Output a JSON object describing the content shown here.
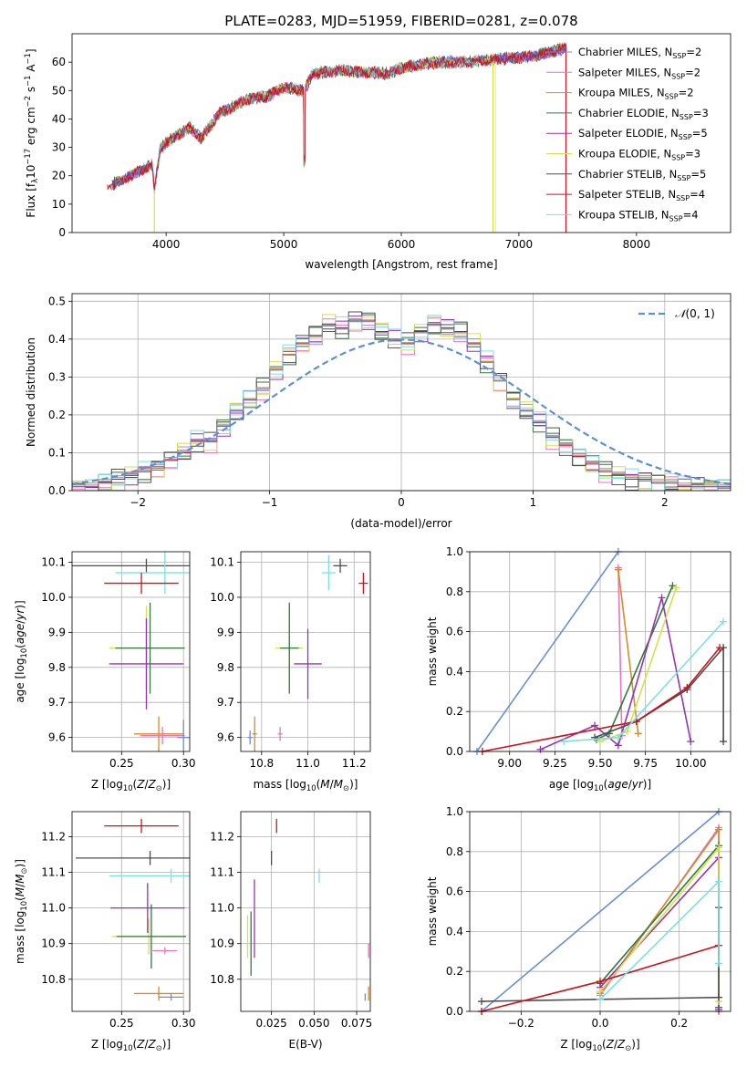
{
  "colors": {
    "Chabrier MILES": "#6a8fd6",
    "Salpeter MILES": "#e377c2",
    "Kroupa MILES": "#d48b2a",
    "Chabrier ELODIE": "#2f7a3a",
    "Salpeter ELODIE": "#9633b5",
    "Kroupa ELODIE": "#d7e04a",
    "Chabrier STELIB": "#4d4d4d",
    "Salpeter STELIB": "#c8141e",
    "Kroupa STELIB": "#7ee0e0",
    "normal": "#5b8fd8"
  },
  "chart_data": [
    {
      "id": "spectrum",
      "type": "line",
      "title": "PLATE=0283, MJD=51959, FIBERID=0281, z=0.078",
      "xlabel": "wavelength [Angstrom, rest frame]",
      "ylabel": "Flux [f_λ10^-17 erg cm^-2 s^-1 A^-1]",
      "xlim": [
        3200,
        8800
      ],
      "ylim": [
        0,
        70
      ],
      "xticks": [
        "4000",
        "5000",
        "6000",
        "7000",
        "8000"
      ],
      "yticks": [
        "0",
        "10",
        "20",
        "30",
        "40",
        "50",
        "60"
      ],
      "grid": false,
      "legend_position": "top-right",
      "legend": [
        {
          "model": "Chabrier MILES",
          "nssp": "2"
        },
        {
          "model": "Salpeter MILES",
          "nssp": "2"
        },
        {
          "model": "Kroupa MILES",
          "nssp": "2"
        },
        {
          "model": "Chabrier ELODIE",
          "nssp": "3"
        },
        {
          "model": "Salpeter ELODIE",
          "nssp": "5"
        },
        {
          "model": "Kroupa ELODIE",
          "nssp": "3"
        },
        {
          "model": "Chabrier STELIB",
          "nssp": "5"
        },
        {
          "model": "Salpeter STELIB",
          "nssp": "4"
        },
        {
          "model": "Kroupa STELIB",
          "nssp": "4"
        }
      ],
      "continuum": [
        [
          3500,
          16
        ],
        [
          3700,
          20
        ],
        [
          3880,
          24
        ],
        [
          3900,
          15
        ],
        [
          3950,
          30
        ],
        [
          4050,
          33
        ],
        [
          4200,
          37
        ],
        [
          4300,
          33
        ],
        [
          4450,
          42
        ],
        [
          4700,
          47
        ],
        [
          4861,
          48
        ],
        [
          5000,
          51
        ],
        [
          5175,
          50
        ],
        [
          5250,
          56
        ],
        [
          5500,
          57
        ],
        [
          5890,
          56
        ],
        [
          6000,
          58
        ],
        [
          6300,
          60
        ],
        [
          6563,
          60
        ],
        [
          6800,
          61
        ],
        [
          7100,
          62
        ],
        [
          7300,
          64
        ],
        [
          7400,
          65
        ]
      ],
      "series_ranges": [
        {
          "name": "Kroupa ELODIE",
          "x": [
            3900,
            6800
          ]
        },
        {
          "name": "Salpeter STELIB",
          "x": [
            3500,
            7400
          ]
        },
        {
          "name": "Chabrier MILES",
          "x": [
            3540,
            7410
          ]
        }
      ]
    },
    {
      "id": "residuals",
      "type": "histogram",
      "xlabel": "(data-model)/error",
      "ylabel": "Normed distribution",
      "xlim": [
        -2.5,
        2.5
      ],
      "ylim": [
        0,
        0.52
      ],
      "xticks": [
        "−2",
        "−1",
        "0",
        "1",
        "2"
      ],
      "yticks": [
        "0.0",
        "0.1",
        "0.2",
        "0.3",
        "0.4",
        "0.5"
      ],
      "grid": true,
      "legend_position": "top-right",
      "legend": [
        {
          "label": "𝒩(0, 1)"
        }
      ],
      "bin_width": 0.1,
      "bin_range": [
        -2.5,
        2.5
      ],
      "series": [
        {
          "name": "Chabrier MILES",
          "values": [
            0.02,
            0.03,
            0.03,
            0.04,
            0.05,
            0.06,
            0.07,
            0.08,
            0.09,
            0.1,
            0.11,
            0.12,
            0.14,
            0.16,
            0.18,
            0.2,
            0.22,
            0.25,
            0.27,
            0.29,
            0.31,
            0.33,
            0.35,
            0.37,
            0.38,
            0.39,
            0.4,
            0.4,
            0.4,
            0.39,
            0.38,
            0.37,
            0.35,
            0.33,
            0.31,
            0.29,
            0.27,
            0.25,
            0.22,
            0.2,
            0.18,
            0.16,
            0.14,
            0.12,
            0.11,
            0.1,
            0.09,
            0.08,
            0.07,
            0.06
          ]
        },
        {
          "name": "Kroupa MILES",
          "values": [
            0.02,
            0.03,
            0.03,
            0.04,
            0.05,
            0.06,
            0.07,
            0.08,
            0.09,
            0.1,
            0.11,
            0.12,
            0.14,
            0.16,
            0.18,
            0.2,
            0.22,
            0.25,
            0.27,
            0.29,
            0.31,
            0.33,
            0.35,
            0.37,
            0.38,
            0.39,
            0.4,
            0.4,
            0.4,
            0.39,
            0.38,
            0.37,
            0.35,
            0.33,
            0.31,
            0.29,
            0.27,
            0.25,
            0.22,
            0.2,
            0.18,
            0.16,
            0.14,
            0.12,
            0.11,
            0.1,
            0.09,
            0.08,
            0.07,
            0.06
          ]
        },
        {
          "name": "Salpeter STELIB",
          "values": [
            0.01,
            0.01,
            0.02,
            0.03,
            0.04,
            0.05,
            0.06,
            0.08,
            0.1,
            0.13,
            0.13,
            0.17,
            0.21,
            0.24,
            0.27,
            0.32,
            0.36,
            0.39,
            0.41,
            0.44,
            0.43,
            0.45,
            0.45,
            0.42,
            0.4,
            0.39,
            0.42,
            0.44,
            0.43,
            0.42,
            0.39,
            0.34,
            0.29,
            0.24,
            0.21,
            0.18,
            0.14,
            0.12,
            0.09,
            0.07,
            0.05,
            0.04,
            0.03,
            0.03,
            0.02,
            0.02,
            0.01,
            0.01,
            0.01,
            0.01
          ]
        }
      ],
      "normal_curve": {
        "label": "𝒩(0, 1)",
        "mean": 0,
        "sigma": 1
      }
    },
    {
      "id": "age-vs-z",
      "type": "errorbar",
      "xlabel": "Z [log10(Z/Z⊙)]",
      "ylabel": "age [log10(age/yr)]",
      "xlim": [
        0.21,
        0.305
      ],
      "ylim": [
        9.56,
        10.13
      ],
      "xticks": [
        "0.25",
        "0.30"
      ],
      "yticks": [
        "9.6",
        "9.7",
        "9.8",
        "9.9",
        "10.0",
        "10.1"
      ],
      "grid": true,
      "points": [
        {
          "series": "Chabrier STELIB",
          "x": 0.27,
          "xerr": 0.06,
          "y": 10.09,
          "yerr": 0.02
        },
        {
          "series": "Kroupa STELIB",
          "x": 0.285,
          "xerr": 0.04,
          "y": 10.07,
          "yerr": 0.06
        },
        {
          "series": "Salpeter STELIB",
          "x": 0.266,
          "xerr": 0.03,
          "y": 10.04,
          "yerr": 0.03
        },
        {
          "series": "Kroupa ELODIE",
          "x": 0.27,
          "xerr": 0.03,
          "y": 9.855,
          "yerr": 0.12
        },
        {
          "series": "Chabrier ELODIE",
          "x": 0.273,
          "xerr": 0.028,
          "y": 9.855,
          "yerr": 0.13
        },
        {
          "series": "Salpeter ELODIE",
          "x": 0.27,
          "xerr": 0.03,
          "y": 9.81,
          "yerr": 0.13
        },
        {
          "series": "Kroupa MILES",
          "x": 0.28,
          "xerr": 0.02,
          "y": 9.61,
          "yerr": 0.05
        },
        {
          "series": "Salpeter MILES",
          "x": 0.283,
          "xerr": 0.018,
          "y": 9.605,
          "yerr": 0.025
        },
        {
          "series": "Chabrier MILES",
          "x": 0.3,
          "xerr": 0.005,
          "y": 9.6,
          "yerr": 0.05
        }
      ]
    },
    {
      "id": "age-vs-mass",
      "type": "errorbar",
      "xlabel": "mass [log10(M/M⊙)]",
      "xlim": [
        10.71,
        11.27
      ],
      "ylim": [
        9.56,
        10.13
      ],
      "xticks": [
        "10.8",
        "11.0",
        "11.2"
      ],
      "yticks": [
        "9.6",
        "9.7",
        "9.8",
        "9.9",
        "10.0",
        "10.1"
      ],
      "grid": true,
      "points": [
        {
          "series": "Chabrier STELIB",
          "x": 11.14,
          "xerr": 0.03,
          "y": 10.09,
          "yerr": 0.02
        },
        {
          "series": "Kroupa STELIB",
          "x": 11.09,
          "xerr": 0.03,
          "y": 10.07,
          "yerr": 0.05
        },
        {
          "series": "Salpeter STELIB",
          "x": 11.24,
          "xerr": 0.02,
          "y": 10.04,
          "yerr": 0.03
        },
        {
          "series": "Kroupa ELODIE",
          "x": 10.92,
          "xerr": 0.06,
          "y": 9.855,
          "yerr": 0.12
        },
        {
          "series": "Chabrier ELODIE",
          "x": 10.92,
          "xerr": 0.04,
          "y": 9.855,
          "yerr": 0.13
        },
        {
          "series": "Salpeter ELODIE",
          "x": 11.0,
          "xerr": 0.06,
          "y": 9.81,
          "yerr": 0.1
        },
        {
          "series": "Kroupa MILES",
          "x": 10.77,
          "xerr": 0.01,
          "y": 9.61,
          "yerr": 0.05
        },
        {
          "series": "Salpeter MILES",
          "x": 10.88,
          "xerr": 0.01,
          "y": 9.61,
          "yerr": 0.02
        },
        {
          "series": "Chabrier MILES",
          "x": 10.75,
          "xerr": 0.01,
          "y": 9.6,
          "yerr": 0.02
        }
      ]
    },
    {
      "id": "weight-vs-age",
      "type": "line",
      "xlabel": "age [log10(age/yr)]",
      "ylabel": "mass weight",
      "xlim": [
        8.78,
        10.22
      ],
      "ylim": [
        0,
        1
      ],
      "xticks": [
        "9.00",
        "9.25",
        "9.50",
        "9.75",
        "10.00"
      ],
      "yticks": [
        "0.0",
        "0.2",
        "0.4",
        "0.6",
        "0.8",
        "1.0"
      ],
      "grid": true,
      "series": [
        {
          "name": "Chabrier MILES",
          "x": [
            8.82,
            9.6
          ],
          "y": [
            0.0,
            1.0
          ]
        },
        {
          "name": "Salpeter MILES",
          "x": [
            9.6,
            9.62
          ],
          "y": [
            0.92,
            0.08
          ]
        },
        {
          "name": "Kroupa MILES",
          "x": [
            9.6,
            9.71
          ],
          "y": [
            0.91,
            0.09
          ]
        },
        {
          "name": "Chabrier ELODIE",
          "x": [
            9.48,
            9.55,
            9.9
          ],
          "y": [
            0.06,
            0.09,
            0.83
          ]
        },
        {
          "name": "Salpeter ELODIE",
          "x": [
            9.17,
            9.47,
            9.6,
            9.84,
            10.0
          ],
          "y": [
            0.01,
            0.13,
            0.03,
            0.77,
            0.05
          ]
        },
        {
          "name": "Kroupa ELODIE",
          "x": [
            9.5,
            9.65,
            9.92
          ],
          "y": [
            0.05,
            0.1,
            0.82
          ]
        },
        {
          "name": "Chabrier STELIB",
          "x": [
            9.47,
            9.7,
            9.98,
            10.18,
            10.18
          ],
          "y": [
            0.07,
            0.15,
            0.31,
            0.52,
            0.05
          ]
        },
        {
          "name": "Salpeter STELIB",
          "x": [
            8.85,
            9.7,
            9.98,
            10.16
          ],
          "y": [
            0.0,
            0.15,
            0.32,
            0.52
          ]
        },
        {
          "name": "Kroupa STELIB",
          "x": [
            9.3,
            9.6,
            10.18
          ],
          "y": [
            0.05,
            0.07,
            0.65
          ]
        }
      ]
    },
    {
      "id": "mass-vs-z",
      "type": "errorbar",
      "xlabel": "Z [log10(Z/Z⊙)]",
      "ylabel": "mass [log10(M/M⊙)]",
      "xlim": [
        0.21,
        0.305
      ],
      "ylim": [
        10.71,
        11.27
      ],
      "xticks": [
        "0.25",
        "0.30"
      ],
      "yticks": [
        "10.8",
        "10.9",
        "11.0",
        "11.1",
        "11.2"
      ],
      "grid": true,
      "points": [
        {
          "series": "Salpeter STELIB",
          "x": 0.266,
          "xerr": 0.03,
          "y": 11.23,
          "yerr": 0.02
        },
        {
          "series": "Chabrier STELIB",
          "x": 0.273,
          "xerr": 0.06,
          "y": 11.14,
          "yerr": 0.02
        },
        {
          "series": "Kroupa STELIB",
          "x": 0.29,
          "xerr": 0.05,
          "y": 11.09,
          "yerr": 0.02
        },
        {
          "series": "Salpeter ELODIE",
          "x": 0.271,
          "xerr": 0.03,
          "y": 11.0,
          "yerr": 0.07
        },
        {
          "series": "Kroupa ELODIE",
          "x": 0.272,
          "xerr": 0.03,
          "y": 10.92,
          "yerr": 0.05
        },
        {
          "series": "Chabrier ELODIE",
          "x": 0.274,
          "xerr": 0.028,
          "y": 10.92,
          "yerr": 0.09
        },
        {
          "series": "Salpeter MILES",
          "x": 0.285,
          "xerr": 0.01,
          "y": 10.88,
          "yerr": 0.01
        },
        {
          "series": "Kroupa MILES",
          "x": 0.28,
          "xerr": 0.02,
          "y": 10.76,
          "yerr": 0.02
        },
        {
          "series": "Chabrier MILES",
          "x": 0.29,
          "xerr": 0.01,
          "y": 10.75,
          "yerr": 0.01
        }
      ]
    },
    {
      "id": "mass-vs-ebv",
      "type": "errorbar",
      "xlabel": "E(B-V)",
      "xlim": [
        0.007,
        0.083
      ],
      "ylim": [
        10.71,
        11.27
      ],
      "xticks": [
        "0.025",
        "0.050",
        "0.075"
      ],
      "yticks": [
        "11.2",
        "11.1",
        "11.0",
        "10.9",
        "10.8"
      ],
      "grid": true,
      "points": [
        {
          "series": "Salpeter STELIB",
          "x": 0.028,
          "xerr": 0,
          "y": 11.23,
          "yerr": 0.02
        },
        {
          "series": "Chabrier STELIB",
          "x": 0.025,
          "xerr": 0,
          "y": 11.14,
          "yerr": 0.02
        },
        {
          "series": "Kroupa STELIB",
          "x": 0.053,
          "xerr": 0,
          "y": 11.09,
          "yerr": 0.02
        },
        {
          "series": "Salpeter ELODIE",
          "x": 0.015,
          "xerr": 0,
          "y": 10.97,
          "yerr": 0.11
        },
        {
          "series": "Kroupa ELODIE",
          "x": 0.011,
          "xerr": 0,
          "y": 10.92,
          "yerr": 0.06
        },
        {
          "series": "Chabrier ELODIE",
          "x": 0.013,
          "xerr": 0,
          "y": 10.9,
          "yerr": 0.09
        },
        {
          "series": "Salpeter MILES",
          "x": 0.082,
          "xerr": 0,
          "y": 10.88,
          "yerr": 0.02
        },
        {
          "series": "Kroupa MILES",
          "x": 0.082,
          "xerr": 0,
          "y": 10.76,
          "yerr": 0.02
        },
        {
          "series": "Chabrier MILES",
          "x": 0.08,
          "xerr": 0,
          "y": 10.75,
          "yerr": 0.01
        }
      ]
    },
    {
      "id": "weight-vs-z",
      "type": "line",
      "xlabel": "Z [log10(Z/Z⊙)]",
      "ylabel": "mass weight",
      "xlim": [
        -0.33,
        0.33
      ],
      "ylim": [
        0,
        1
      ],
      "xticks": [
        "−0.2",
        "0.0",
        "0.2"
      ],
      "yticks": [
        "0.0",
        "0.2",
        "0.4",
        "0.6",
        "0.8",
        "1.0"
      ],
      "grid": true,
      "series": [
        {
          "name": "Chabrier MILES",
          "x": [
            -0.3,
            0.3
          ],
          "y": [
            0.0,
            1.0
          ]
        },
        {
          "name": "Salpeter MILES",
          "x": [
            0.0,
            0.3,
            0.3
          ],
          "y": [
            0.08,
            0.92,
            0.0
          ]
        },
        {
          "name": "Kroupa MILES",
          "x": [
            0.0,
            0.3,
            0.3
          ],
          "y": [
            0.09,
            0.91,
            0.0
          ]
        },
        {
          "name": "Chabrier ELODIE",
          "x": [
            0.0,
            0.3,
            0.3
          ],
          "y": [
            0.14,
            0.83,
            0.02
          ]
        },
        {
          "name": "Salpeter ELODIE",
          "x": [
            0.0,
            0.3,
            0.3
          ],
          "y": [
            0.12,
            0.77,
            0.01
          ]
        },
        {
          "name": "Kroupa ELODIE",
          "x": [
            0.0,
            0.3,
            0.3
          ],
          "y": [
            0.1,
            0.82,
            0.05
          ]
        },
        {
          "name": "Chabrier STELIB",
          "x": [
            -0.3,
            0.3,
            0.3
          ],
          "y": [
            0.05,
            0.07,
            0.52
          ]
        },
        {
          "name": "Salpeter STELIB",
          "x": [
            -0.3,
            0.0,
            0.3
          ],
          "y": [
            0.0,
            0.15,
            0.33
          ]
        },
        {
          "name": "Kroupa STELIB",
          "x": [
            0.0,
            0.3,
            0.3
          ],
          "y": [
            0.06,
            0.65,
            0.24
          ]
        }
      ]
    }
  ]
}
